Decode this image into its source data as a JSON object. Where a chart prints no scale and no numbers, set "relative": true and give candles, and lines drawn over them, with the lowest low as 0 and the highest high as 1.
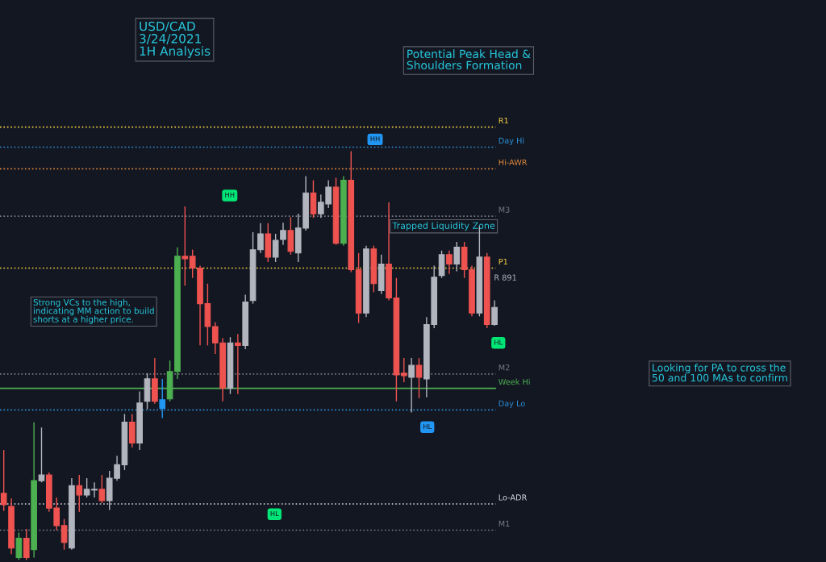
{
  "chart_data": {
    "type": "candlestick",
    "title": "USD/CAD\n3/24/2021\n1H Analysis",
    "relative": true,
    "categories": [
      null,
      null,
      null,
      null,
      null,
      null,
      null,
      null,
      null,
      null,
      null,
      null,
      null,
      null,
      null,
      null,
      null,
      null,
      null,
      null,
      null,
      null,
      null,
      null,
      null,
      null,
      null,
      null,
      null,
      null,
      null,
      null,
      null,
      null,
      null,
      null,
      null,
      null,
      null,
      null,
      null,
      null,
      null,
      null,
      null,
      null,
      null,
      null,
      null,
      null,
      null,
      null,
      null,
      null,
      null,
      null,
      null,
      null,
      null,
      null,
      null,
      null,
      null,
      null,
      null,
      null
    ],
    "ohlc": [
      [
        0.163,
        0.269,
        0.12,
        0.135
      ],
      [
        0.131,
        0.151,
        0.014,
        0.029
      ],
      [
        0.006,
        0.067,
        0.0,
        0.053
      ],
      [
        0.053,
        0.076,
        0.0,
        0.006
      ],
      [
        0.025,
        0.337,
        0.006,
        0.194
      ],
      [
        0.194,
        0.324,
        0.19,
        0.208
      ],
      [
        0.208,
        0.214,
        0.118,
        0.127
      ],
      [
        0.127,
        0.153,
        0.073,
        0.084
      ],
      [
        0.084,
        0.1,
        0.025,
        0.043
      ],
      [
        0.029,
        0.2,
        0.025,
        0.182
      ],
      [
        0.182,
        0.208,
        0.118,
        0.159
      ],
      [
        0.159,
        0.2,
        0.153,
        0.173
      ],
      [
        0.173,
        0.19,
        0.153,
        0.171
      ],
      [
        0.173,
        0.208,
        0.139,
        0.145
      ],
      [
        0.145,
        0.218,
        0.122,
        0.2
      ],
      [
        0.2,
        0.255,
        0.194,
        0.233
      ],
      [
        0.233,
        0.357,
        0.22,
        0.337
      ],
      [
        0.337,
        0.357,
        0.275,
        0.286
      ],
      [
        0.286,
        0.412,
        0.269,
        0.384
      ],
      [
        0.388,
        0.457,
        0.369,
        0.443
      ],
      [
        0.443,
        0.494,
        0.382,
        0.388
      ],
      [
        0.371,
        0.443,
        0.347,
        0.392
      ],
      [
        0.394,
        0.488,
        0.388,
        0.461
      ],
      [
        0.461,
        0.765,
        0.443,
        0.743
      ],
      [
        0.743,
        0.865,
        0.671,
        0.737
      ],
      [
        0.743,
        0.759,
        0.69,
        0.714
      ],
      [
        0.714,
        0.72,
        0.525,
        0.627
      ],
      [
        0.627,
        0.676,
        0.525,
        0.571
      ],
      [
        0.571,
        0.582,
        0.504,
        0.531
      ],
      [
        0.531,
        0.543,
        0.388,
        0.42
      ],
      [
        0.42,
        0.545,
        0.406,
        0.531
      ],
      [
        0.531,
        0.553,
        0.406,
        0.525
      ],
      [
        0.525,
        0.649,
        0.516,
        0.631
      ],
      [
        0.635,
        0.802,
        0.627,
        0.759
      ],
      [
        0.759,
        0.824,
        0.751,
        0.798
      ],
      [
        0.798,
        0.824,
        0.729,
        0.741
      ],
      [
        0.741,
        0.798,
        0.729,
        0.782
      ],
      [
        0.784,
        0.825,
        0.771,
        0.806
      ],
      [
        0.806,
        0.839,
        0.747,
        0.755
      ],
      [
        0.751,
        0.847,
        0.729,
        0.812
      ],
      [
        0.812,
        0.939,
        0.806,
        0.898
      ],
      [
        0.898,
        0.929,
        0.837,
        0.847
      ],
      [
        0.847,
        0.894,
        0.837,
        0.875
      ],
      [
        0.871,
        0.929,
        0.861,
        0.912
      ],
      [
        0.912,
        0.935,
        0.771,
        0.775
      ],
      [
        0.775,
        0.939,
        0.769,
        0.929
      ],
      [
        0.929,
        1.0,
        0.704,
        0.71
      ],
      [
        0.71,
        0.751,
        0.58,
        0.604
      ],
      [
        0.604,
        0.769,
        0.594,
        0.761
      ],
      [
        0.761,
        0.769,
        0.655,
        0.676
      ],
      [
        0.659,
        0.747,
        0.651,
        0.724
      ],
      [
        0.724,
        0.875,
        0.635,
        0.641
      ],
      [
        0.641,
        0.69,
        0.388,
        0.453
      ],
      [
        0.457,
        0.494,
        0.435,
        0.451
      ],
      [
        0.447,
        0.494,
        0.361,
        0.476
      ],
      [
        0.476,
        0.494,
        0.396,
        0.447
      ],
      [
        0.443,
        0.594,
        0.398,
        0.576
      ],
      [
        0.576,
        0.72,
        0.567,
        0.692
      ],
      [
        0.696,
        0.757,
        0.69,
        0.747
      ],
      [
        0.747,
        0.757,
        0.7,
        0.724
      ],
      [
        0.724,
        0.778,
        0.706,
        0.765
      ],
      [
        0.765,
        0.778,
        0.69,
        0.71
      ],
      [
        0.71,
        0.72,
        0.596,
        0.604
      ],
      [
        0.604,
        0.816,
        0.596,
        0.741
      ],
      [
        0.741,
        0.751,
        0.567,
        0.576
      ],
      [
        0.576,
        0.635,
        0.573,
        0.618
      ]
    ],
    "colors": [
      "#ef5350",
      "#ef5350",
      "#4caf50",
      "#ef5350",
      "#4caf50",
      "#b2b5be",
      "#ef5350",
      "#ef5350",
      "#ef5350",
      "#b2b5be",
      "#ef5350",
      "#b2b5be",
      "#b2b5be",
      "#ef5350",
      "#b2b5be",
      "#b2b5be",
      "#b2b5be",
      "#ef5350",
      "#b2b5be",
      "#b2b5be",
      "#ef5350",
      "#2196f3",
      "#4caf50",
      "#4caf50",
      "#ef5350",
      "#ef5350",
      "#ef5350",
      "#ef5350",
      "#ef5350",
      "#ef5350",
      "#b2b5be",
      "#ef5350",
      "#b2b5be",
      "#b2b5be",
      "#b2b5be",
      "#ef5350",
      "#b2b5be",
      "#b2b5be",
      "#ef5350",
      "#b2b5be",
      "#b2b5be",
      "#ef5350",
      "#b2b5be",
      "#b2b5be",
      "#ef5350",
      "#4caf50",
      "#ef5350",
      "#ef5350",
      "#b2b5be",
      "#ef5350",
      "#b2b5be",
      "#ef5350",
      "#ef5350",
      "#ef5350",
      "#b2b5be",
      "#ef5350",
      "#b2b5be",
      "#b2b5be",
      "#b2b5be",
      "#ef5350",
      "#b2b5be",
      "#ef5350",
      "#ef5350",
      "#b2b5be",
      "#ef5350",
      "#b2b5be"
    ],
    "ref_lines": [
      {
        "axis": "y",
        "value": 1.059,
        "label": "R1",
        "color": "#f5d142",
        "line_style": "dotted"
      },
      {
        "axis": "y",
        "value": 1.01,
        "label": "Day Hi",
        "color": "#2e8fd8",
        "line_style": "dotted"
      },
      {
        "axis": "y",
        "value": 0.957,
        "label": "Hi-AWR",
        "color": "#e08a3c",
        "line_style": "dotted"
      },
      {
        "axis": "y",
        "value": 0.841,
        "label": "M3",
        "color": "#787b86",
        "line_style": "dotted"
      },
      {
        "axis": "y",
        "value": 0.714,
        "label": "P1",
        "color": "#f5d142",
        "line_style": "dotted"
      },
      {
        "axis": "y",
        "value": 0.455,
        "label": "M2",
        "color": "#787b86",
        "line_style": "dotted"
      },
      {
        "axis": "y",
        "value": 0.42,
        "label": "Week Hi",
        "color": "#4caf50",
        "line_style": "solid"
      },
      {
        "axis": "y",
        "value": 0.367,
        "label": "Day Lo",
        "color": "#2e8fd8",
        "line_style": "dotted"
      },
      {
        "axis": "y",
        "value": 0.137,
        "label": "Lo-ADR",
        "color": "#d1d4dc",
        "line_style": "dotted"
      },
      {
        "axis": "y",
        "value": 0.073,
        "label": "M1",
        "color": "#787b86",
        "line_style": "dotted"
      }
    ],
    "annotations": [
      "Potential Peak Head &\nShoulders Formation",
      "Trapped Liquidity Zone",
      "Strong VCs to the high,\nindicating MM action to build\nshorts at a higher price.",
      "Looking for PA to cross the\n50 and 100 MAs to confirm",
      "R 891",
      "HH",
      "HH",
      "HL",
      "HL",
      "HL"
    ]
  }
}
